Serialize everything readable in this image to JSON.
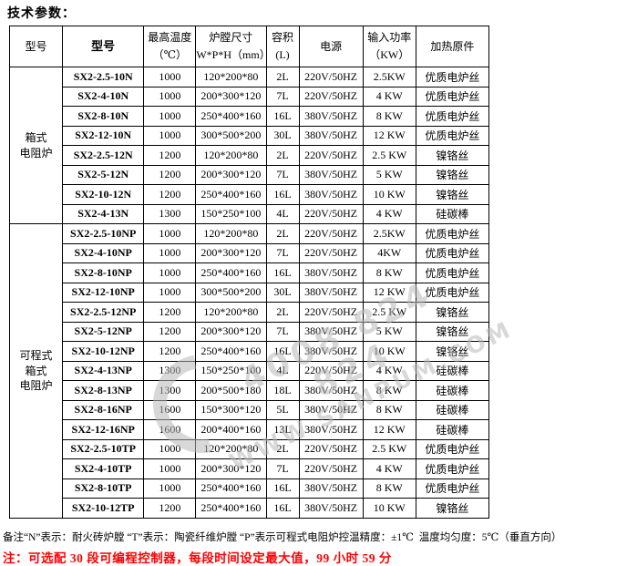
{
  "title": "技术参数：",
  "table": {
    "columns": [
      {
        "label": "型号",
        "bold": false
      },
      {
        "label": "型号",
        "bold": true
      },
      {
        "label": "最高温度",
        "label2": "（℃）"
      },
      {
        "label": "炉膛尺寸",
        "label2": "W*P*H（mm）"
      },
      {
        "label": "容积",
        "label2": "(L)"
      },
      {
        "label": "电源"
      },
      {
        "label": "输入功率",
        "label2": "（KW）"
      },
      {
        "label": "加热原件"
      }
    ],
    "sections": [
      {
        "category_lines": [
          "箱式",
          "电阻炉"
        ],
        "rows": [
          [
            "SX2-2.5-10N",
            "1000",
            "120*200*80",
            "2L",
            "220V/50HZ",
            "2.5KW",
            "优质电炉丝"
          ],
          [
            "SX2-4-10N",
            "1000",
            "200*300*120",
            "7L",
            "220V/50HZ",
            "4 KW",
            "优质电炉丝"
          ],
          [
            "SX2-8-10N",
            "1000",
            "250*400*160",
            "16L",
            "380V/50HZ",
            "8 KW",
            "优质电炉丝"
          ],
          [
            "SX2-12-10N",
            "1000",
            "300*500*200",
            "30L",
            "380V/50HZ",
            "12 KW",
            "优质电炉丝"
          ],
          [
            "SX2-2.5-12N",
            "1200",
            "120*200*80",
            "2L",
            "220V/50HZ",
            "2.5 KW",
            "镍铬丝"
          ],
          [
            "SX2-5-12N",
            "1200",
            "200*300*120",
            "7L",
            "380V/50HZ",
            "5 KW",
            "镍铬丝"
          ],
          [
            "SX2-10-12N",
            "1200",
            "250*400*160",
            "16L",
            "380V/50HZ",
            "10 KW",
            "镍铬丝"
          ],
          [
            "SX2-4-13N",
            "1300",
            "150*250*100",
            "4L",
            "220V/50HZ",
            "4 KW",
            "硅碳棒"
          ]
        ]
      },
      {
        "category_lines": [
          "可程式",
          "箱式",
          "电阻炉"
        ],
        "rows": [
          [
            "SX2-2.5-10NP",
            "1000",
            "120*200*80",
            "2L",
            "220V/50HZ",
            "2.5KW",
            "优质电炉丝"
          ],
          [
            "SX2-4-10NP",
            "1000",
            "200*300*120",
            "7L",
            "220V/50HZ",
            "4KW",
            "优质电炉丝"
          ],
          [
            "SX2-8-10NP",
            "1000",
            "250*400*160",
            "16L",
            "380V/50HZ",
            "8 KW",
            "优质电炉丝"
          ],
          [
            "SX2-12-10NP",
            "1000",
            "300*500*200",
            "30L",
            "380V/50HZ",
            "12 KW",
            "优质电炉丝"
          ],
          [
            "SX2-2.5-12NP",
            "1200",
            "120*200*80",
            "2L",
            "220V/50HZ",
            "2.5 KW",
            "镍铬丝"
          ],
          [
            "SX2-5-12NP",
            "1200",
            "200*300*120",
            "7L",
            "380V/50HZ",
            "5 KW",
            "镍铬丝"
          ],
          [
            "SX2-10-12NP",
            "1200",
            "250*400*160",
            "16L",
            "380V/50HZ",
            "10 KW",
            "镍铬丝"
          ],
          [
            "SX2-4-13NP",
            "1300",
            "150*250*100",
            "4L",
            "220V/50HZ",
            "4 KW",
            "硅碳棒"
          ],
          [
            "SX2-8-13NP",
            "1300",
            "200*500*180",
            "18L",
            "380V/50HZ",
            "8 KW",
            "硅碳棒"
          ],
          [
            "SX2-8-16NP",
            "1600",
            "150*300*120",
            "5L",
            "380V/50HZ",
            "8 KW",
            "硅碳棒"
          ],
          [
            "SX2-12-16NP",
            "1600",
            "200*400*160",
            "13L",
            "380V/50HZ",
            "12 KW",
            "硅碳棒"
          ],
          [
            "SX2-2.5-10TP",
            "1000",
            "120*200*80",
            "2L",
            "220V/50HZ",
            "2.5 KW",
            "优质电炉丝"
          ],
          [
            "SX2-4-10TP",
            "1000",
            "200*300*120",
            "7L",
            "220V/50HZ",
            "4 KW",
            "优质电炉丝"
          ],
          [
            "SX2-8-10TP",
            "1000",
            "250*400*160",
            "16L",
            "380V/50HZ",
            "8 KW",
            "优质电炉丝"
          ],
          [
            "SX2-10-12TP",
            "1200",
            "250*400*160",
            "16L",
            "380V/50HZ",
            "10 KW",
            "镍铬丝"
          ]
        ]
      }
    ]
  },
  "footer": {
    "note_black": "备注“N”表示：耐火砖炉膛 “T”表示：陶瓷纤维炉膛 “P”表示可程式电阻炉控温精度：±1℃  温度均匀度：5℃（垂直方向）",
    "note_red": "注：可选配 30 段可编程控制器，每段时间设定最大值，99 小时 59 分"
  },
  "watermark": {
    "line1": "4008 824 824",
    "line2": "WWW.SANPUM.COM",
    "color": "#b9b9b9"
  },
  "colors": {
    "border": "#000000",
    "note_red": "#ff0000",
    "background": "#ffffff"
  }
}
